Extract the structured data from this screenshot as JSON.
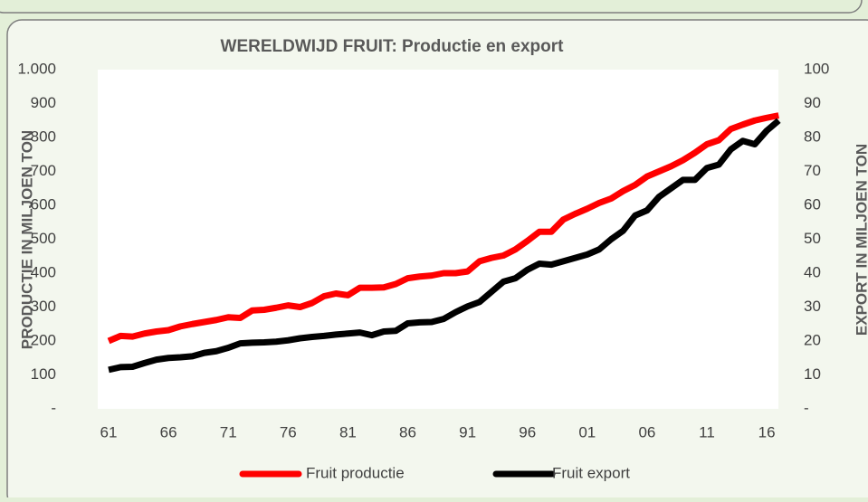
{
  "chart_data": {
    "type": "line",
    "title": "WERELDWIJD FRUIT: Productie en export",
    "y_label": "PRODUCTIE IN MILJOEN TON",
    "y2_label": "EXPORT IN MILJOEN TON",
    "categories": [
      "61",
      null,
      null,
      null,
      null,
      "66",
      null,
      null,
      null,
      null,
      "71",
      null,
      null,
      null,
      null,
      "76",
      null,
      null,
      null,
      null,
      "81",
      null,
      null,
      null,
      null,
      "86",
      null,
      null,
      null,
      null,
      "91",
      null,
      null,
      null,
      null,
      "96",
      null,
      null,
      null,
      null,
      "01",
      null,
      null,
      null,
      null,
      "06",
      null,
      null,
      null,
      null,
      "11",
      null,
      null,
      null,
      null,
      "16",
      null
    ],
    "series": [
      {
        "name": "Fruit productie",
        "color": "#ff0000",
        "values": [
          200,
          215,
          213,
          222,
          228,
          232,
          243,
          250,
          256,
          262,
          270,
          268,
          290,
          292,
          298,
          305,
          300,
          312,
          332,
          340,
          335,
          357,
          357,
          358,
          368,
          385,
          390,
          393,
          400,
          400,
          405,
          435,
          445,
          452,
          470,
          495,
          522,
          522,
          558,
          575,
          590,
          607,
          620,
          642,
          660,
          685,
          700,
          715,
          733,
          755,
          780,
          792,
          825,
          838,
          850,
          858,
          865
        ]
      },
      {
        "name": "Fruit export",
        "color": "#000000",
        "axis": "y2",
        "values": [
          11.5,
          12.3,
          12.4,
          13.5,
          14.5,
          15,
          15.2,
          15.5,
          16.5,
          17,
          18,
          19.3,
          19.5,
          19.6,
          19.8,
          20.2,
          20.8,
          21.2,
          21.5,
          21.9,
          22.2,
          22.5,
          21.7,
          22.8,
          23,
          25.2,
          25.5,
          25.6,
          26.5,
          28.5,
          30.2,
          31.5,
          34.5,
          37.5,
          38.5,
          41,
          42.8,
          42.5,
          43.5,
          44.5,
          45.5,
          47,
          50,
          52.5,
          57,
          58.5,
          62.5,
          65,
          67.5,
          67.5,
          71,
          72,
          76.5,
          79,
          78,
          82,
          85
        ]
      }
    ],
    "ylim": [
      0,
      1000
    ],
    "yticks": [
      {
        "value": 0,
        "label": "-"
      },
      100,
      200,
      300,
      400,
      500,
      600,
      700,
      800,
      900,
      {
        "value": 1000,
        "label": "1.000"
      }
    ],
    "y2lim": [
      0,
      100
    ],
    "y2ticks": [
      {
        "value": 0,
        "label": "-"
      },
      10,
      20,
      30,
      40,
      50,
      60,
      70,
      80,
      90,
      100
    ],
    "legend": "bottom"
  }
}
